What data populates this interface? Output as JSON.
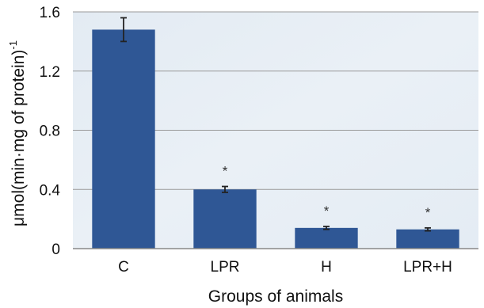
{
  "chart_data": {
    "type": "bar",
    "title": "",
    "xlabel": "Groups of animals",
    "ylabel": "μmol(min·mg of protein)",
    "ylabel_superscript": "-1",
    "categories": [
      "C",
      "LPR",
      "H",
      "LPR+H"
    ],
    "values": [
      1.48,
      0.4,
      0.14,
      0.13
    ],
    "errors": [
      0.08,
      0.02,
      0.01,
      0.01
    ],
    "annotations": [
      "",
      "*",
      "*",
      "*"
    ],
    "yticks": [
      "0",
      "0.4",
      "0.8",
      "1.2",
      "1.6"
    ],
    "ylim": [
      0,
      1.6
    ],
    "grid": true,
    "legend": "none",
    "colors": {
      "bar": "#2f5795",
      "plot_background": "#e7eef5",
      "grid": "#9a9a9a",
      "error_bar": "#222222"
    }
  }
}
